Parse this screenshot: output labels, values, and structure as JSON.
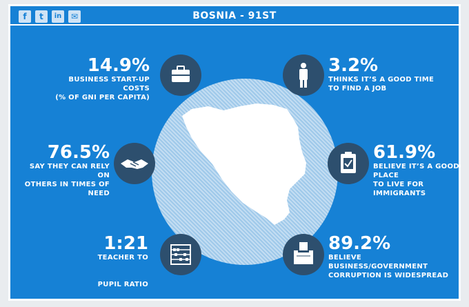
{
  "header": {
    "title": "BOSNIA - 91ST",
    "social": [
      {
        "name": "facebook",
        "glyph": "f"
      },
      {
        "name": "twitter",
        "glyph": "t"
      },
      {
        "name": "linkedin",
        "glyph": "in"
      },
      {
        "name": "email",
        "glyph": "✉"
      }
    ]
  },
  "colors": {
    "background": "#1681d5",
    "icon_bg": "#2d4f6e",
    "text": "#ffffff"
  },
  "stats": {
    "startup": {
      "value": "14.9%",
      "line1": "BUSINESS START-UP COSTS",
      "line2": "(% OF GNI PER CAPITA)",
      "icon": "briefcase-icon"
    },
    "job": {
      "value": "3.2%",
      "line1": "THINKS IT’S A GOOD TIME",
      "line2": "TO FIND A JOB",
      "icon": "person-icon"
    },
    "rely": {
      "value": "76.5%",
      "line1": "SAY THEY CAN RELY ON",
      "line2": "OTHERS IN TIMES OF NEED",
      "icon": "handshake-icon"
    },
    "immigrants": {
      "value": "61.9%",
      "line1": "BELIEVE IT’S A GOOD PLACE",
      "line2": "TO LIVE FOR IMMIGRANTS",
      "icon": "clipboard-icon"
    },
    "teacher": {
      "value": "1:21",
      "line1": "TEACHER TO",
      "line2": "PUPIL RATIO",
      "icon": "abacus-icon"
    },
    "corruption": {
      "value": "89.2%",
      "line1": "BELIEVE BUSINESS/GOVERNMENT",
      "line2": "CORRUPTION IS WIDESPREAD",
      "icon": "ballot-box-icon"
    }
  }
}
